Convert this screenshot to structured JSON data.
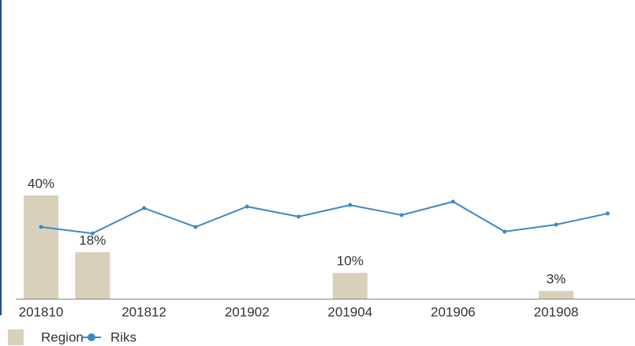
{
  "chart_data": {
    "type": "bar-line",
    "categories": [
      "201810",
      null,
      "201812",
      null,
      "201902",
      null,
      "201904",
      null,
      "201906",
      null,
      "201908",
      null
    ],
    "series": [
      {
        "name": "Region",
        "type": "bar",
        "color": "#d9d0bc",
        "values": [
          40,
          18,
          null,
          null,
          null,
          null,
          10,
          null,
          null,
          null,
          3,
          null
        ],
        "value_labels": [
          "40%",
          "18%",
          null,
          null,
          null,
          null,
          "10%",
          null,
          null,
          null,
          "3%",
          null
        ]
      },
      {
        "name": "Riks",
        "type": "line",
        "color": "#3d8ac4",
        "values": [
          27.8,
          25.3,
          35.1,
          27.8,
          35.7,
          31.8,
          36.3,
          32.4,
          37.6,
          26.0,
          28.7,
          33.0
        ]
      }
    ],
    "ylim": [
      0,
      100
    ]
  }
}
